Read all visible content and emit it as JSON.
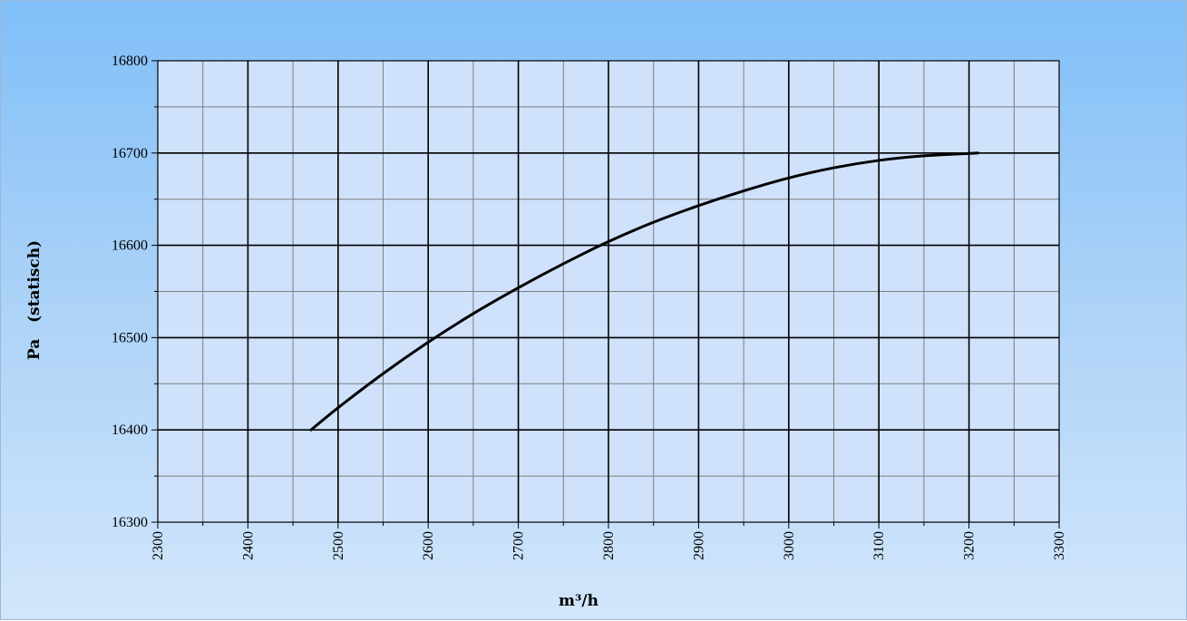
{
  "chart_data": {
    "type": "line",
    "title": "",
    "xlabel": "m³/h",
    "ylabel": "Pa   (statisch)",
    "xlim": [
      2300,
      3300
    ],
    "ylim": [
      16300,
      16800
    ],
    "x_ticks": [
      "2300",
      "2400",
      "2500",
      "2600",
      "2700",
      "2800",
      "2900",
      "3000",
      "3100",
      "3200",
      "3300"
    ],
    "y_ticks": [
      "16300",
      "16400",
      "16500",
      "16600",
      "16700",
      "16800"
    ],
    "grid": true,
    "legend": "none",
    "series": [
      {
        "x": [
          2470,
          2500,
          2550,
          2600,
          2650,
          2700,
          2750,
          2800,
          2850,
          2900,
          2950,
          3000,
          3050,
          3100,
          3150,
          3210
        ],
        "y": [
          16400,
          16424,
          16461,
          16495,
          16526,
          16554,
          16580,
          16604,
          16625,
          16643,
          16659,
          16673,
          16684,
          16692,
          16697,
          16700
        ],
        "color": "#000000"
      }
    ],
    "colors": {
      "background_top": "#80bff9",
      "background_bottom": "#d2e6fb",
      "plot_area": "#cfe1fb",
      "major_grid": "#000000",
      "minor_grid": "#7f7f7f"
    }
  }
}
